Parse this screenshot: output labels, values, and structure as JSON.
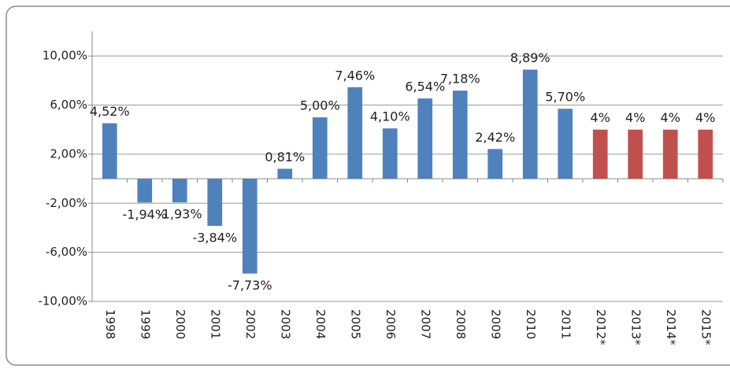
{
  "chart_data": {
    "type": "bar",
    "categories": [
      "1998",
      "1999",
      "2000",
      "2001",
      "2002",
      "2003",
      "2004",
      "2005",
      "2006",
      "2007",
      "2008",
      "2009",
      "2010",
      "2011",
      "2012*",
      "2013*",
      "2014*",
      "2015*"
    ],
    "values": [
      4.52,
      -1.94,
      -1.93,
      -3.84,
      -7.73,
      0.81,
      5.0,
      7.46,
      4.1,
      6.54,
      7.18,
      2.42,
      8.89,
      5.7,
      4,
      4,
      4,
      4
    ],
    "value_labels": [
      "4,52%",
      "-1,94%",
      "-1,93%",
      "-3,84%",
      "-7,73%",
      "0,81%",
      "5,00%",
      "7,46%",
      "4,10%",
      "6,54%",
      "7,18%",
      "2,42%",
      "8,89%",
      "5,70%",
      "4%",
      "4%",
      "4%",
      "4%"
    ],
    "colors": [
      "#4f81bd",
      "#4f81bd",
      "#4f81bd",
      "#4f81bd",
      "#4f81bd",
      "#4f81bd",
      "#4f81bd",
      "#4f81bd",
      "#4f81bd",
      "#4f81bd",
      "#4f81bd",
      "#4f81bd",
      "#4f81bd",
      "#4f81bd",
      "#c0504d",
      "#c0504d",
      "#c0504d",
      "#c0504d"
    ],
    "ylim": [
      -10,
      12
    ],
    "yticks": [
      {
        "value": -10,
        "label": "-10,00%"
      },
      {
        "value": -6,
        "label": "-6,00%"
      },
      {
        "value": -2,
        "label": "-2,00%"
      },
      {
        "value": 2,
        "label": "2,00%"
      },
      {
        "value": 6,
        "label": "6,00%"
      },
      {
        "value": 10,
        "label": "10,00%"
      }
    ],
    "grid": true
  }
}
